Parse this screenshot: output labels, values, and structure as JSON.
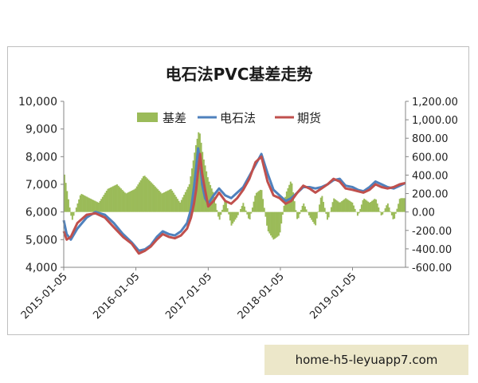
{
  "chart_data": {
    "type": "line",
    "title": "电石法PVC基差走势",
    "legend": [
      "基差",
      "电石法",
      "期货"
    ],
    "legend_placement": "top-center",
    "colors": {
      "basis": "#9bbb59",
      "carbide": "#4f81bd",
      "futures": "#c0504d"
    },
    "x_tick_labels": [
      "2015-01-05",
      "2016-01-05",
      "2017-01-05",
      "2018-01-05",
      "2019-01-05"
    ],
    "x_range": [
      "2015-01-05",
      "2019-09-30"
    ],
    "y_left": {
      "range": [
        4000,
        10000
      ],
      "ticks": [
        "4,000",
        "5,000",
        "6,000",
        "7,000",
        "8,000",
        "9,000",
        "10,000"
      ]
    },
    "y_right": {
      "range": [
        -600,
        1200
      ],
      "ticks": [
        "-600.00",
        "-400.00",
        "-200.00",
        "0.00",
        "200.00",
        "400.00",
        "600.00",
        "800.00",
        "1,000.00",
        "1,200.00"
      ]
    },
    "grid": false,
    "series": [
      {
        "name": "电石法",
        "axis": "left",
        "x": [
          "2015-01-05",
          "2015-01-20",
          "2015-02-10",
          "2015-03-15",
          "2015-05-01",
          "2015-06-15",
          "2015-08-01",
          "2015-09-15",
          "2015-11-01",
          "2015-12-15",
          "2016-01-20",
          "2016-02-20",
          "2016-03-20",
          "2016-04-20",
          "2016-05-20",
          "2016-06-20",
          "2016-07-20",
          "2016-08-20",
          "2016-09-20",
          "2016-10-10",
          "2016-10-25",
          "2016-11-05",
          "2016-11-15",
          "2016-11-25",
          "2016-12-05",
          "2016-12-20",
          "2017-01-05",
          "2017-02-01",
          "2017-03-01",
          "2017-04-01",
          "2017-05-01",
          "2017-06-01",
          "2017-07-01",
          "2017-08-01",
          "2017-09-01",
          "2017-10-01",
          "2017-11-01",
          "2017-12-01",
          "2018-01-01",
          "2018-02-01",
          "2018-03-01",
          "2018-04-01",
          "2018-05-01",
          "2018-06-01",
          "2018-07-01",
          "2018-08-01",
          "2018-09-01",
          "2018-10-01",
          "2018-11-01",
          "2018-12-01",
          "2019-01-05",
          "2019-02-01",
          "2019-03-01",
          "2019-04-01",
          "2019-05-01",
          "2019-06-01",
          "2019-07-01",
          "2019-08-01",
          "2019-09-01",
          "2019-09-30"
        ],
        "y": [
          5700,
          5200,
          5000,
          5400,
          5800,
          6000,
          5900,
          5600,
          5200,
          4900,
          4600,
          4650,
          4800,
          5100,
          5300,
          5200,
          5150,
          5300,
          5600,
          6100,
          6900,
          7600,
          8300,
          7800,
          7000,
          6500,
          6300,
          6600,
          6850,
          6600,
          6500,
          6700,
          6900,
          7300,
          7700,
          8100,
          7400,
          6800,
          6600,
          6400,
          6500,
          6700,
          6900,
          6900,
          6850,
          6900,
          7000,
          7150,
          7200,
          6950,
          6900,
          6800,
          6750,
          6900,
          7100,
          7000,
          6900,
          6850,
          6950,
          7050
        ]
      },
      {
        "name": "期货",
        "axis": "left",
        "x": [
          "2015-01-05",
          "2015-01-20",
          "2015-02-10",
          "2015-03-15",
          "2015-05-01",
          "2015-06-15",
          "2015-08-01",
          "2015-09-15",
          "2015-11-01",
          "2015-12-15",
          "2016-01-20",
          "2016-02-20",
          "2016-03-20",
          "2016-04-20",
          "2016-05-20",
          "2016-06-20",
          "2016-07-20",
          "2016-08-20",
          "2016-09-20",
          "2016-10-10",
          "2016-10-25",
          "2016-11-05",
          "2016-11-15",
          "2016-11-25",
          "2016-12-05",
          "2016-12-20",
          "2017-01-05",
          "2017-02-01",
          "2017-03-01",
          "2017-04-01",
          "2017-05-01",
          "2017-06-01",
          "2017-07-01",
          "2017-08-01",
          "2017-09-01",
          "2017-10-01",
          "2017-11-01",
          "2017-12-01",
          "2018-01-01",
          "2018-02-01",
          "2018-03-01",
          "2018-04-01",
          "2018-05-01",
          "2018-06-01",
          "2018-07-01",
          "2018-08-01",
          "2018-09-01",
          "2018-10-01",
          "2018-11-01",
          "2018-12-01",
          "2019-01-05",
          "2019-02-01",
          "2019-03-01",
          "2019-04-01",
          "2019-05-01",
          "2019-06-01",
          "2019-07-01",
          "2019-08-01",
          "2019-09-01",
          "2019-09-30"
        ],
        "y": [
          5300,
          5000,
          5100,
          5600,
          5900,
          5950,
          5800,
          5450,
          5100,
          4850,
          4500,
          4600,
          4750,
          5000,
          5200,
          5100,
          5050,
          5150,
          5400,
          5800,
          6300,
          6800,
          7500,
          8100,
          7400,
          6800,
          6200,
          6400,
          6700,
          6400,
          6300,
          6500,
          6800,
          7200,
          7800,
          8000,
          7100,
          6600,
          6500,
          6300,
          6400,
          6700,
          6950,
          6850,
          6700,
          6850,
          7000,
          7200,
          7100,
          6850,
          6800,
          6750,
          6700,
          6800,
          7000,
          6900,
          6850,
          6900,
          7000,
          7050
        ]
      }
    ],
    "bars": {
      "name": "基差",
      "axis": "right",
      "x": [
        "2015-01-05",
        "2015-02-15",
        "2015-04-01",
        "2015-05-15",
        "2015-07-01",
        "2015-08-15",
        "2015-10-01",
        "2015-11-15",
        "2016-01-01",
        "2016-02-15",
        "2016-04-01",
        "2016-05-15",
        "2016-07-01",
        "2016-08-15",
        "2016-10-01",
        "2016-11-01",
        "2016-11-20",
        "2016-12-10",
        "2017-01-05",
        "2017-02-01",
        "2017-03-01",
        "2017-04-01",
        "2017-05-01",
        "2017-06-01",
        "2017-07-01",
        "2017-08-01",
        "2017-09-01",
        "2017-10-01",
        "2017-11-01",
        "2017-12-01",
        "2018-01-01",
        "2018-02-01",
        "2018-03-01",
        "2018-04-01",
        "2018-05-01",
        "2018-06-01",
        "2018-07-01",
        "2018-08-01",
        "2018-09-01",
        "2018-10-01",
        "2018-11-01",
        "2018-12-01",
        "2019-01-05",
        "2019-02-01",
        "2019-03-01",
        "2019-04-01",
        "2019-05-01",
        "2019-06-01",
        "2019-07-01",
        "2019-08-01",
        "2019-09-01"
      ],
      "y": [
        450,
        -100,
        200,
        150,
        100,
        250,
        300,
        200,
        250,
        400,
        300,
        200,
        250,
        100,
        300,
        700,
        900,
        600,
        350,
        200,
        -100,
        150,
        -150,
        -50,
        100,
        -100,
        200,
        250,
        -200,
        -300,
        -250,
        200,
        350,
        -100,
        100,
        -50,
        -150,
        200,
        -100,
        150,
        100,
        150,
        100,
        -50,
        150,
        100,
        150,
        -50,
        100,
        -100,
        150
      ]
    }
  },
  "watermark": "home-h5-leyuapp7.com"
}
